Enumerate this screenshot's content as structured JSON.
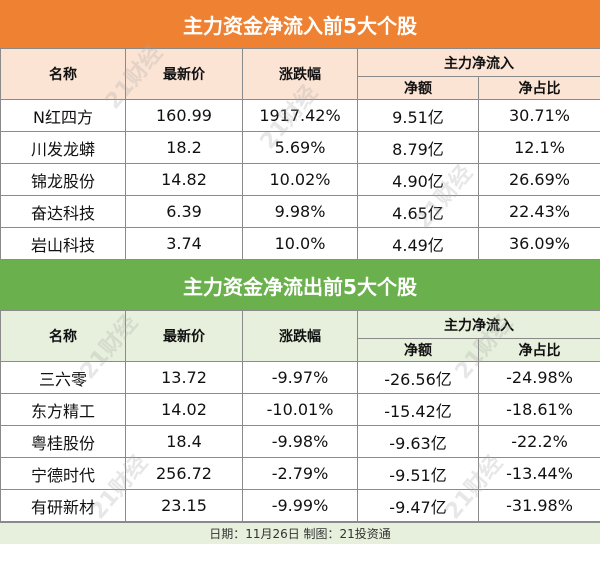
{
  "inflow": {
    "title": "主力资金净流入前5大个股",
    "headers": {
      "name": "名称",
      "price": "最新价",
      "change": "涨跌幅",
      "group": "主力净流入",
      "net": "净额",
      "ratio": "净占比"
    },
    "rows": [
      {
        "name": "N红四方",
        "price": "160.99",
        "change": "1917.42%",
        "net": "9.51亿",
        "ratio": "30.71%"
      },
      {
        "name": "川发龙蟒",
        "price": "18.2",
        "change": "5.69%",
        "net": "8.79亿",
        "ratio": "12.1%"
      },
      {
        "name": "锦龙股份",
        "price": "14.82",
        "change": "10.02%",
        "net": "4.90亿",
        "ratio": "26.69%"
      },
      {
        "name": "奋达科技",
        "price": "6.39",
        "change": "9.98%",
        "net": "4.65亿",
        "ratio": "22.43%"
      },
      {
        "name": "岩山科技",
        "price": "3.74",
        "change": "10.0%",
        "net": "4.49亿",
        "ratio": "36.09%"
      }
    ]
  },
  "outflow": {
    "title": "主力资金净流出前5大个股",
    "headers": {
      "name": "名称",
      "price": "最新价",
      "change": "涨跌幅",
      "group": "主力净流入",
      "net": "净额",
      "ratio": "净占比"
    },
    "rows": [
      {
        "name": "三六零",
        "price": "13.72",
        "change": "-9.97%",
        "net": "-26.56亿",
        "ratio": "-24.98%"
      },
      {
        "name": "东方精工",
        "price": "14.02",
        "change": "-10.01%",
        "net": "-15.42亿",
        "ratio": "-18.61%"
      },
      {
        "name": "粤桂股份",
        "price": "18.4",
        "change": "-9.98%",
        "net": "-9.63亿",
        "ratio": "-22.2%"
      },
      {
        "name": "宁德时代",
        "price": "256.72",
        "change": "-2.79%",
        "net": "-9.51亿",
        "ratio": "-13.44%"
      },
      {
        "name": "有研新材",
        "price": "23.15",
        "change": "-9.99%",
        "net": "-9.47亿",
        "ratio": "-31.98%"
      }
    ]
  },
  "footer": {
    "text": "日期：11月26日 制图：21投资通"
  },
  "watermark": {
    "text": "21财经"
  },
  "colors": {
    "inflow_accent": "#ef8232",
    "outflow_accent": "#6ab04c",
    "inflow_header_bg": "#fbe4d4",
    "outflow_header_bg": "#e6f0dc"
  }
}
